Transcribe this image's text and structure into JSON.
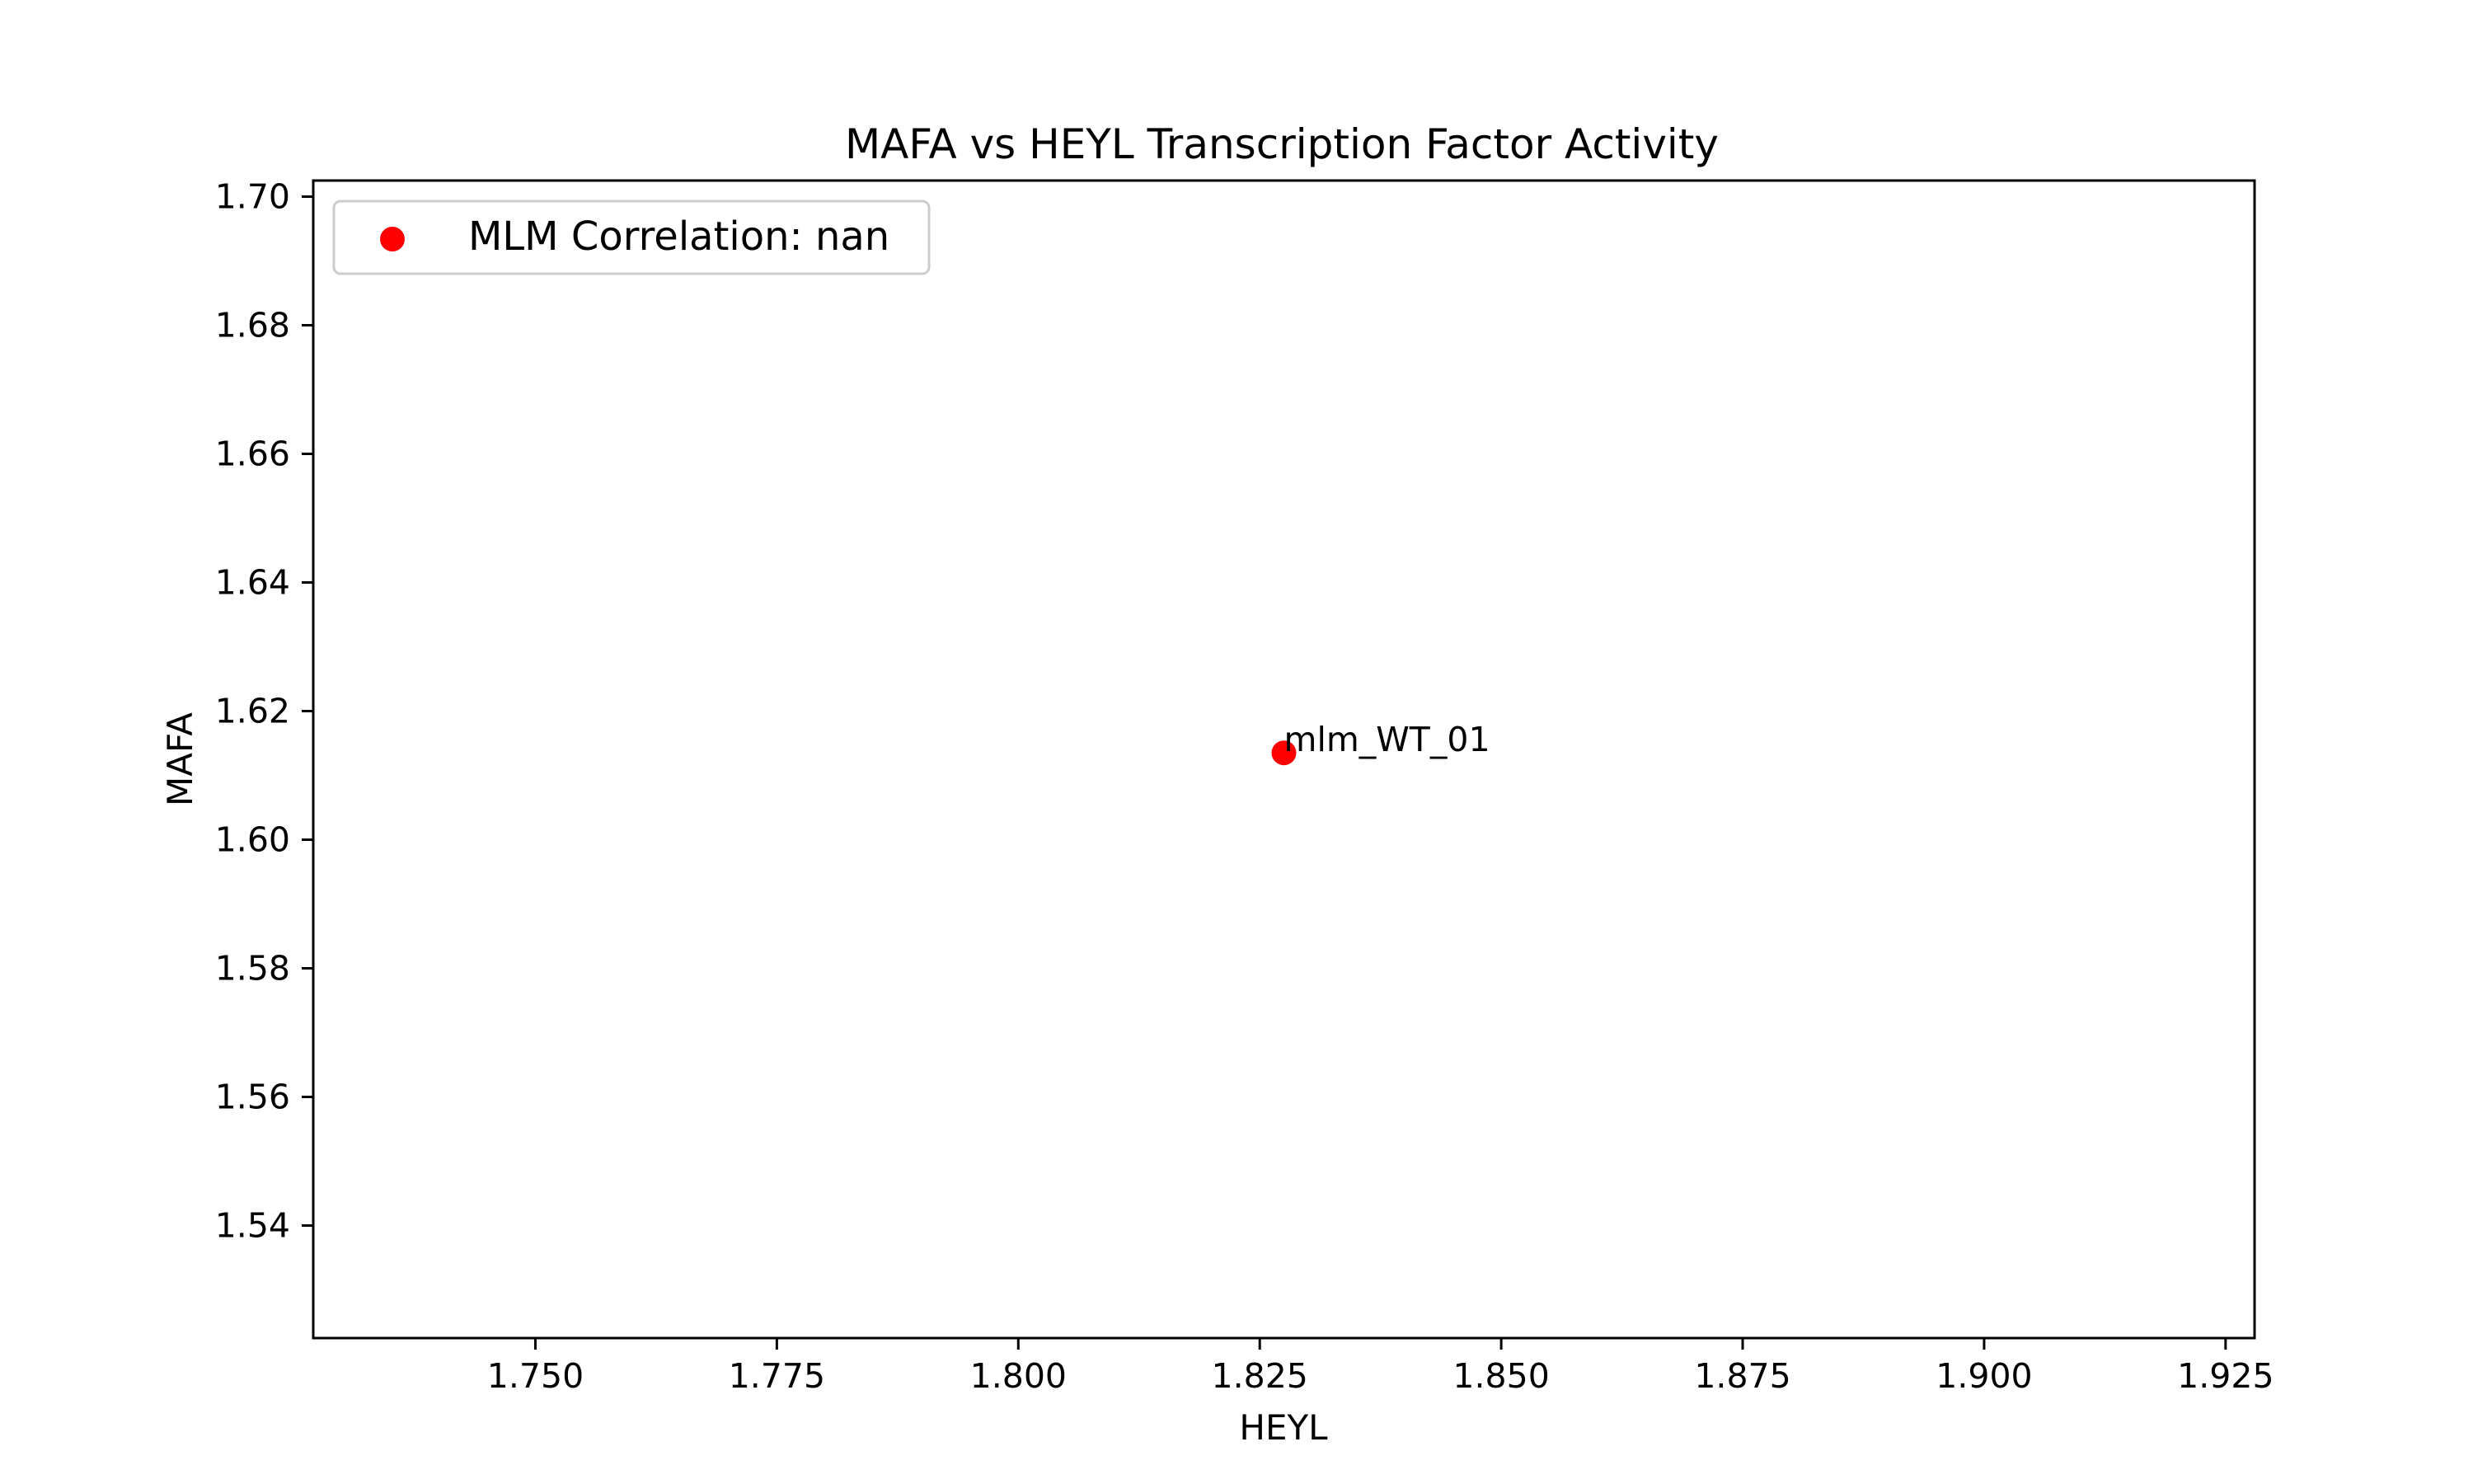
{
  "chart_data": {
    "type": "scatter",
    "title": "MAFA vs HEYL Transcription Factor Activity",
    "xlabel": "HEYL",
    "ylabel": "MAFA",
    "xlim": [
      1.727,
      1.928
    ],
    "ylim": [
      1.5225,
      1.7025
    ],
    "xticks": [
      1.75,
      1.775,
      1.8,
      1.825,
      1.85,
      1.875,
      1.9,
      1.925
    ],
    "xtick_labels": [
      "1.750",
      "1.775",
      "1.800",
      "1.825",
      "1.850",
      "1.875",
      "1.900",
      "1.925"
    ],
    "yticks": [
      1.54,
      1.56,
      1.58,
      1.6,
      1.62,
      1.64,
      1.66,
      1.68,
      1.7
    ],
    "ytick_labels": [
      "1.54",
      "1.56",
      "1.58",
      "1.60",
      "1.62",
      "1.64",
      "1.66",
      "1.68",
      "1.70"
    ],
    "grid": false,
    "legend_position": "top-left",
    "series": [
      {
        "name": "MLM Correlation: nan",
        "color": "#ff0000",
        "points": [
          {
            "x": 1.8275,
            "y": 1.6135,
            "label": "mlm_WT_01"
          }
        ]
      }
    ]
  }
}
